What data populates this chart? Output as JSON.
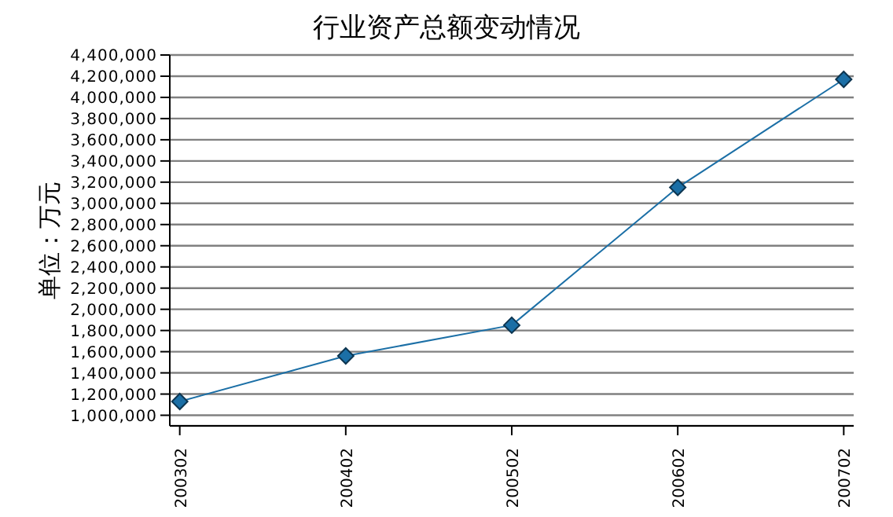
{
  "chart_data": {
    "type": "line",
    "title": "行业资产总额变动情况",
    "ylabel": "单位：万元",
    "categories": [
      "200302",
      "200402",
      "200502",
      "200602",
      "200702"
    ],
    "series": [
      {
        "color": "#1b6fa6",
        "values": [
          1130000,
          1560000,
          1850000,
          3150000,
          4170000
        ]
      }
    ],
    "ylim": [
      900000,
      4400000
    ],
    "yticks": [
      {
        "value": 1000000,
        "label": "1,000,000"
      },
      {
        "value": 1200000,
        "label": "1,200,000"
      },
      {
        "value": 1400000,
        "label": "1,400,000"
      },
      {
        "value": 1600000,
        "label": "1,600,000"
      },
      {
        "value": 1800000,
        "label": "1,800,000"
      },
      {
        "value": 2000000,
        "label": "2,000,000"
      },
      {
        "value": 2200000,
        "label": "2,200,000"
      },
      {
        "value": 2400000,
        "label": "2,400,000"
      },
      {
        "value": 2600000,
        "label": "2,600,000"
      },
      {
        "value": 2800000,
        "label": "2,800,000"
      },
      {
        "value": 3000000,
        "label": "3,000,000"
      },
      {
        "value": 3200000,
        "label": "3,200,000"
      },
      {
        "value": 3400000,
        "label": "3,400,000"
      },
      {
        "value": 3600000,
        "label": "3,600,000"
      },
      {
        "value": 3800000,
        "label": "3,800,000"
      },
      {
        "value": 4000000,
        "label": "4,000,000"
      },
      {
        "value": 4200000,
        "label": "4,200,000"
      },
      {
        "value": 4400000,
        "label": "4,400,000"
      }
    ],
    "grid": "y",
    "marker": "diamond",
    "line_style": "solid",
    "legend": false
  }
}
